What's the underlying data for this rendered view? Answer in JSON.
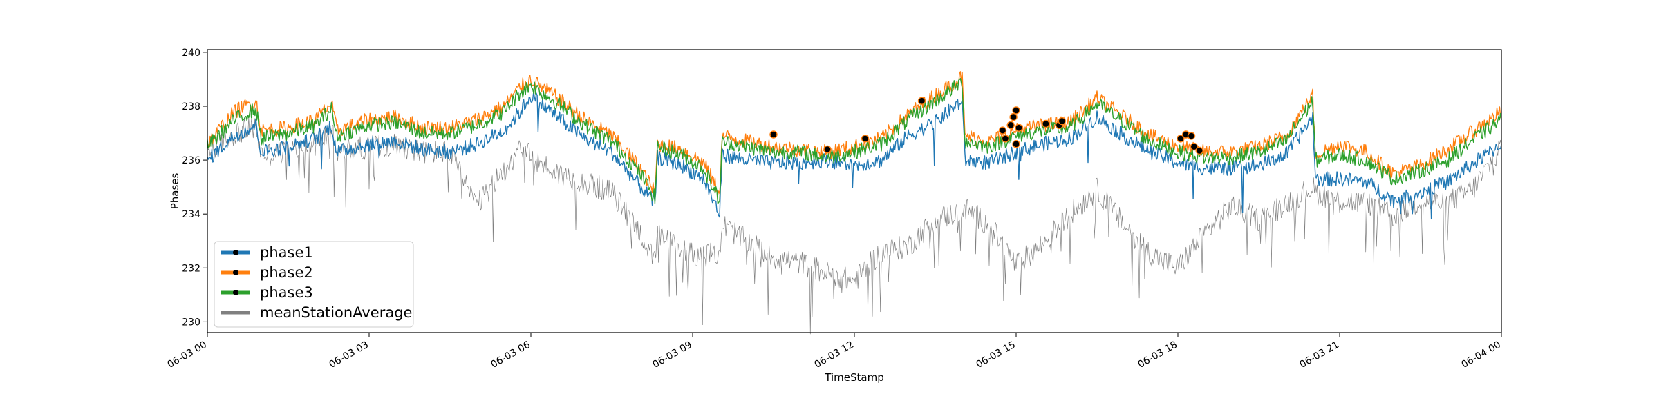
{
  "chart_data": {
    "type": "line",
    "title": "",
    "xlabel": "TimeStamp",
    "ylabel": "Phases",
    "x_range": [
      "06-03 00",
      "06-04 00"
    ],
    "ylim": [
      229.6,
      240.1
    ],
    "grid": false,
    "legend_position": "lower-left",
    "x_tick_labels": [
      "06-03 00",
      "06-03 03",
      "06-03 06",
      "06-03 09",
      "06-03 12",
      "06-03 15",
      "06-03 18",
      "06-03 21",
      "06-04 00"
    ],
    "x_tick_hours": [
      0,
      3,
      6,
      9,
      12,
      15,
      18,
      21,
      24
    ],
    "y_ticks": [
      230,
      232,
      234,
      236,
      238,
      240
    ],
    "y_tick_labels": [
      "230",
      "232",
      "234",
      "236",
      "238",
      "240"
    ],
    "x_hours": [
      0,
      0.5,
      0.9,
      1.0,
      1.5,
      2.0,
      2.3,
      2.4,
      3.0,
      3.5,
      4.0,
      4.5,
      5.0,
      5.5,
      5.8,
      6.0,
      6.5,
      7.0,
      7.5,
      8.0,
      8.3,
      8.35,
      8.8,
      9.2,
      9.5,
      9.55,
      10.0,
      10.5,
      11.0,
      11.5,
      12.0,
      12.5,
      13.0,
      13.5,
      14.0,
      14.05,
      14.5,
      15.0,
      15.5,
      16.0,
      16.5,
      17.0,
      17.5,
      18.0,
      18.5,
      19.0,
      19.5,
      20.0,
      20.5,
      20.55,
      21.0,
      21.5,
      22.0,
      22.5,
      23.0,
      23.5,
      24.0
    ],
    "series": [
      {
        "name": "phase1",
        "color": "#1f77b4",
        "values": [
          236.0,
          236.9,
          237.3,
          236.3,
          236.5,
          236.8,
          237.3,
          236.3,
          236.6,
          236.7,
          236.4,
          236.3,
          236.6,
          237.1,
          237.8,
          238.4,
          237.6,
          236.8,
          236.3,
          235.1,
          234.4,
          236.1,
          235.8,
          235.3,
          234.0,
          236.2,
          236.0,
          235.9,
          235.9,
          236.0,
          235.8,
          236.0,
          236.9,
          237.4,
          238.2,
          236.0,
          235.9,
          236.3,
          236.6,
          236.8,
          237.6,
          236.9,
          236.3,
          235.9,
          235.7,
          235.7,
          235.8,
          236.2,
          237.6,
          235.3,
          235.3,
          235.2,
          234.5,
          234.8,
          235.2,
          235.9,
          236.6
        ]
      },
      {
        "name": "phase2",
        "color": "#ff7f0e",
        "values": [
          236.6,
          237.8,
          238.2,
          237.1,
          237.2,
          237.5,
          238.1,
          237.1,
          237.5,
          237.6,
          237.2,
          237.2,
          237.5,
          238.0,
          238.7,
          239.0,
          238.3,
          237.5,
          236.9,
          235.8,
          234.8,
          236.6,
          236.4,
          235.9,
          234.8,
          236.9,
          236.7,
          236.5,
          236.4,
          236.3,
          236.5,
          236.8,
          237.7,
          238.4,
          239.1,
          236.9,
          236.7,
          237.1,
          237.3,
          237.4,
          238.3,
          237.6,
          236.9,
          236.5,
          236.3,
          236.3,
          236.5,
          236.9,
          238.4,
          236.2,
          236.6,
          236.3,
          235.5,
          235.8,
          236.4,
          237.1,
          237.8
        ]
      },
      {
        "name": "phase3",
        "color": "#2ca02c",
        "values": [
          236.5,
          237.5,
          237.9,
          236.8,
          237.0,
          237.3,
          237.9,
          236.9,
          237.3,
          237.4,
          237.0,
          237.0,
          237.3,
          237.8,
          238.5,
          238.8,
          238.1,
          237.3,
          236.7,
          235.6,
          234.6,
          236.5,
          236.2,
          235.7,
          234.5,
          236.7,
          236.5,
          236.3,
          236.3,
          236.1,
          236.3,
          236.6,
          237.5,
          238.2,
          238.9,
          236.7,
          236.5,
          236.9,
          237.1,
          237.2,
          238.1,
          237.4,
          236.7,
          236.3,
          236.1,
          236.1,
          236.3,
          236.7,
          238.2,
          236.0,
          236.2,
          236.0,
          235.3,
          235.6,
          236.0,
          236.8,
          237.5
        ]
      },
      {
        "name": "meanStationAverage",
        "color": "#808080",
        "values": [
          236.3,
          237.0,
          237.2,
          236.2,
          236.3,
          236.6,
          237.1,
          236.3,
          236.5,
          236.6,
          236.3,
          236.3,
          234.3,
          235.6,
          236.6,
          236.1,
          235.5,
          235.2,
          234.8,
          233.4,
          232.2,
          233.2,
          232.7,
          232.4,
          232.6,
          233.6,
          233.0,
          232.4,
          232.2,
          231.8,
          231.5,
          232.6,
          232.8,
          233.8,
          234.1,
          234.2,
          233.6,
          232.1,
          232.9,
          234.0,
          234.9,
          233.6,
          232.5,
          232.0,
          233.3,
          234.3,
          233.8,
          234.4,
          235.0,
          234.8,
          234.5,
          234.4,
          233.9,
          234.5,
          234.4,
          235.0,
          236.5
        ]
      }
    ],
    "markers": [
      {
        "x": 10.5,
        "y": 236.95
      },
      {
        "x": 11.5,
        "y": 236.4
      },
      {
        "x": 12.2,
        "y": 236.8
      },
      {
        "x": 13.25,
        "y": 238.2
      },
      {
        "x": 14.75,
        "y": 237.1
      },
      {
        "x": 14.8,
        "y": 236.8
      },
      {
        "x": 14.9,
        "y": 237.3
      },
      {
        "x": 14.95,
        "y": 237.6
      },
      {
        "x": 15.0,
        "y": 237.85
      },
      {
        "x": 15.0,
        "y": 236.6
      },
      {
        "x": 15.05,
        "y": 237.2
      },
      {
        "x": 15.55,
        "y": 237.35
      },
      {
        "x": 15.8,
        "y": 237.3
      },
      {
        "x": 15.85,
        "y": 237.45
      },
      {
        "x": 18.05,
        "y": 236.8
      },
      {
        "x": 18.15,
        "y": 236.95
      },
      {
        "x": 18.25,
        "y": 236.9
      },
      {
        "x": 18.3,
        "y": 236.5
      },
      {
        "x": 18.4,
        "y": 236.35
      }
    ]
  }
}
